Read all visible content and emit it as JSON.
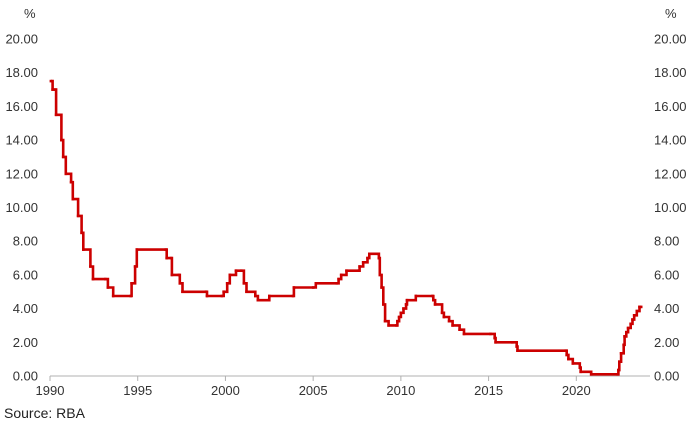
{
  "chart_data": {
    "type": "line",
    "unit_left": "%",
    "unit_right": "%",
    "ylim": [
      0,
      20
    ],
    "yticks": [
      "0.00",
      "2.00",
      "4.00",
      "6.00",
      "8.00",
      "10.00",
      "12.00",
      "14.00",
      "16.00",
      "18.00",
      "20.00"
    ],
    "xlim": [
      1990,
      2024.2
    ],
    "xticks": [
      "1990",
      "1995",
      "2000",
      "2005",
      "2010",
      "2015",
      "2020"
    ],
    "grid": false,
    "line_color": "#cc0000",
    "series": [
      {
        "values": [
          [
            1990.05,
            17.5
          ],
          [
            1990.15,
            17.0
          ],
          [
            1990.3,
            17.0
          ],
          [
            1990.35,
            15.5
          ],
          [
            1990.6,
            15.5
          ],
          [
            1990.65,
            14.0
          ],
          [
            1990.75,
            13.0
          ],
          [
            1990.9,
            12.0
          ],
          [
            1991.2,
            11.5
          ],
          [
            1991.3,
            10.5
          ],
          [
            1991.6,
            9.5
          ],
          [
            1991.8,
            8.5
          ],
          [
            1991.9,
            7.5
          ],
          [
            1992.3,
            6.5
          ],
          [
            1992.45,
            5.75
          ],
          [
            1993.15,
            5.75
          ],
          [
            1993.3,
            5.25
          ],
          [
            1993.6,
            4.75
          ],
          [
            1994.6,
            4.75
          ],
          [
            1994.65,
            5.5
          ],
          [
            1994.85,
            6.5
          ],
          [
            1994.95,
            7.5
          ],
          [
            1996.6,
            7.5
          ],
          [
            1996.65,
            7.0
          ],
          [
            1996.9,
            7.0
          ],
          [
            1996.95,
            6.0
          ],
          [
            1997.35,
            6.0
          ],
          [
            1997.4,
            5.5
          ],
          [
            1997.55,
            5.0
          ],
          [
            1998.9,
            5.0
          ],
          [
            1998.95,
            4.75
          ],
          [
            1999.8,
            4.75
          ],
          [
            1999.9,
            5.0
          ],
          [
            2000.1,
            5.5
          ],
          [
            2000.25,
            6.0
          ],
          [
            2000.6,
            6.25
          ],
          [
            2000.9,
            6.25
          ],
          [
            2001.05,
            5.5
          ],
          [
            2001.2,
            5.0
          ],
          [
            2001.7,
            4.75
          ],
          [
            2001.85,
            4.5
          ],
          [
            2002.45,
            4.5
          ],
          [
            2002.5,
            4.75
          ],
          [
            2003.85,
            4.75
          ],
          [
            2003.9,
            5.25
          ],
          [
            2005.0,
            5.25
          ],
          [
            2005.15,
            5.5
          ],
          [
            2006.35,
            5.5
          ],
          [
            2006.45,
            5.75
          ],
          [
            2006.6,
            6.0
          ],
          [
            2006.9,
            6.25
          ],
          [
            2007.6,
            6.25
          ],
          [
            2007.65,
            6.5
          ],
          [
            2007.85,
            6.75
          ],
          [
            2008.1,
            7.0
          ],
          [
            2008.2,
            7.25
          ],
          [
            2008.7,
            7.25
          ],
          [
            2008.75,
            7.0
          ],
          [
            2008.8,
            6.0
          ],
          [
            2008.9,
            5.25
          ],
          [
            2009.0,
            4.25
          ],
          [
            2009.1,
            3.25
          ],
          [
            2009.3,
            3.0
          ],
          [
            2009.75,
            3.0
          ],
          [
            2009.8,
            3.25
          ],
          [
            2009.9,
            3.5
          ],
          [
            2010.0,
            3.75
          ],
          [
            2010.15,
            4.0
          ],
          [
            2010.3,
            4.25
          ],
          [
            2010.35,
            4.5
          ],
          [
            2010.85,
            4.75
          ],
          [
            2011.8,
            4.75
          ],
          [
            2011.85,
            4.5
          ],
          [
            2011.95,
            4.25
          ],
          [
            2012.35,
            3.75
          ],
          [
            2012.45,
            3.5
          ],
          [
            2012.75,
            3.25
          ],
          [
            2012.95,
            3.0
          ],
          [
            2013.35,
            2.75
          ],
          [
            2013.6,
            2.5
          ],
          [
            2015.1,
            2.5
          ],
          [
            2015.35,
            2.25
          ],
          [
            2015.4,
            2.0
          ],
          [
            2016.35,
            2.0
          ],
          [
            2016.6,
            1.75
          ],
          [
            2016.65,
            1.5
          ],
          [
            2019.4,
            1.5
          ],
          [
            2019.45,
            1.25
          ],
          [
            2019.55,
            1.0
          ],
          [
            2019.8,
            0.75
          ],
          [
            2020.2,
            0.5
          ],
          [
            2020.25,
            0.25
          ],
          [
            2020.85,
            0.1
          ],
          [
            2022.35,
            0.1
          ],
          [
            2022.4,
            0.35
          ],
          [
            2022.45,
            0.85
          ],
          [
            2022.55,
            1.35
          ],
          [
            2022.7,
            1.85
          ],
          [
            2022.75,
            2.35
          ],
          [
            2022.85,
            2.6
          ],
          [
            2022.95,
            2.85
          ],
          [
            2023.1,
            3.1
          ],
          [
            2023.2,
            3.35
          ],
          [
            2023.3,
            3.6
          ],
          [
            2023.45,
            3.85
          ],
          [
            2023.6,
            4.1
          ],
          [
            2023.7,
            4.1
          ]
        ]
      }
    ]
  },
  "source_text": "Source: RBA"
}
